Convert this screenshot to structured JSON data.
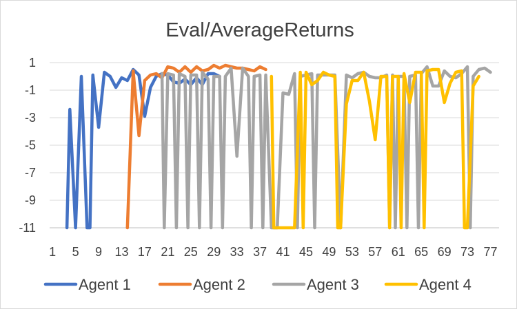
{
  "chart_data": {
    "type": "line",
    "title": "Eval/AverageReturns",
    "xlabel": "",
    "ylabel": "",
    "ylim": [
      -11,
      1
    ],
    "yticks": [
      1,
      -1,
      -3,
      -5,
      -7,
      -9,
      -11
    ],
    "xlim": [
      1,
      78
    ],
    "xticks": [
      1,
      5,
      9,
      13,
      17,
      21,
      25,
      29,
      33,
      37,
      41,
      45,
      49,
      53,
      57,
      61,
      65,
      69,
      73,
      77
    ],
    "grid": true,
    "legend": "bottom",
    "series": [
      {
        "name": "Agent 1",
        "color": "#4472c4",
        "points": [
          [
            3.5,
            -11
          ],
          [
            4,
            -2.4
          ],
          [
            5,
            -11
          ],
          [
            6,
            0
          ],
          [
            7,
            -11
          ],
          [
            7.5,
            -11
          ],
          [
            8,
            0.1
          ],
          [
            9,
            -3.7
          ],
          [
            10,
            0.3
          ],
          [
            11,
            0
          ],
          [
            12,
            -0.8
          ],
          [
            13,
            -0.1
          ],
          [
            14,
            -0.3
          ],
          [
            15,
            0.5
          ],
          [
            16,
            0.1
          ],
          [
            17,
            -2.9
          ],
          [
            18,
            -0.8
          ],
          [
            19,
            0
          ],
          [
            20,
            0.2
          ],
          [
            21,
            0.1
          ],
          [
            22,
            -0.4
          ],
          [
            23,
            -0.5
          ],
          [
            24,
            -0.2
          ],
          [
            25,
            -0.6
          ],
          [
            26,
            -0.1
          ],
          [
            27,
            -0.6
          ],
          [
            28,
            0.2
          ],
          [
            29,
            0.2
          ],
          [
            30,
            0
          ]
        ]
      },
      {
        "name": "Agent 2",
        "color": "#ed7d31",
        "points": [
          [
            14,
            -11
          ],
          [
            15,
            0.4
          ],
          [
            16,
            -4.3
          ],
          [
            17,
            -0.3
          ],
          [
            18,
            0.1
          ],
          [
            19,
            0.2
          ],
          [
            20,
            -0.1
          ],
          [
            21,
            0.7
          ],
          [
            22,
            0.6
          ],
          [
            23,
            0.3
          ],
          [
            24,
            0.7
          ],
          [
            25,
            0.3
          ],
          [
            26,
            0.7
          ],
          [
            27,
            0.4
          ],
          [
            28,
            0.5
          ],
          [
            29,
            0.8
          ],
          [
            30,
            0.6
          ],
          [
            31,
            0.8
          ],
          [
            32,
            0.7
          ],
          [
            33,
            0.6
          ],
          [
            34,
            0.6
          ],
          [
            35,
            0.5
          ],
          [
            36,
            0.4
          ],
          [
            37,
            0.7
          ],
          [
            38,
            0.5
          ]
        ]
      },
      {
        "name": "Agent 3",
        "color": "#a5a5a5",
        "points": [
          [
            20,
            0.2
          ],
          [
            20.4,
            -11
          ],
          [
            21,
            0.2
          ],
          [
            22,
            0.1
          ],
          [
            22.5,
            -11
          ],
          [
            23,
            0.2
          ],
          [
            24,
            0
          ],
          [
            24.5,
            -11
          ],
          [
            25,
            0.1
          ],
          [
            26,
            0.1
          ],
          [
            26.5,
            -11
          ],
          [
            27,
            0.3
          ],
          [
            28,
            -0.2
          ],
          [
            28.5,
            -11
          ],
          [
            29,
            0
          ],
          [
            30,
            0
          ],
          [
            30.5,
            -11
          ],
          [
            31,
            0
          ],
          [
            32,
            0.6
          ],
          [
            33,
            -5.8
          ],
          [
            34,
            0.6
          ],
          [
            35,
            0
          ],
          [
            35.5,
            -11
          ],
          [
            36,
            0
          ],
          [
            37,
            0.1
          ],
          [
            37.5,
            -11
          ],
          [
            38,
            0.1
          ],
          [
            39,
            -11
          ],
          [
            40,
            -11
          ],
          [
            41,
            -1.2
          ],
          [
            42,
            -1.3
          ],
          [
            43,
            0.2
          ],
          [
            43.5,
            -11
          ],
          [
            44,
            0
          ],
          [
            45,
            0.1
          ],
          [
            46,
            0.2
          ],
          [
            46.5,
            -11
          ],
          [
            47,
            0.1
          ],
          [
            48,
            0.1
          ],
          [
            49,
            0.1
          ],
          [
            50,
            0.1
          ],
          [
            51,
            -11
          ],
          [
            52,
            0.1
          ],
          [
            53,
            -0.1
          ],
          [
            54,
            0.2
          ],
          [
            55,
            0.3
          ],
          [
            56,
            0
          ],
          [
            57,
            -0.1
          ],
          [
            58,
            -0.1
          ],
          [
            59,
            0.1
          ],
          [
            59.5,
            -11
          ],
          [
            60,
            0.1
          ],
          [
            60.5,
            -11
          ],
          [
            61,
            0
          ],
          [
            62,
            0
          ],
          [
            62.5,
            -11
          ],
          [
            63,
            0
          ],
          [
            64,
            0.1
          ],
          [
            64.5,
            -11
          ],
          [
            65,
            0.2
          ],
          [
            66,
            0.7
          ],
          [
            67,
            -0.7
          ],
          [
            68,
            -0.7
          ],
          [
            69,
            0.4
          ],
          [
            70,
            0
          ],
          [
            71,
            -0.1
          ],
          [
            72,
            0.2
          ],
          [
            73,
            0.7
          ],
          [
            73.5,
            -11
          ],
          [
            74,
            0
          ],
          [
            75,
            0.5
          ],
          [
            76,
            0.6
          ],
          [
            77,
            0.3
          ]
        ]
      },
      {
        "name": "Agent 4",
        "color": "#ffc000",
        "points": [
          [
            39,
            0
          ],
          [
            39.4,
            -11
          ],
          [
            40,
            -11
          ],
          [
            43,
            -11
          ],
          [
            44,
            0.3
          ],
          [
            44.5,
            -11
          ],
          [
            45,
            0.3
          ],
          [
            46,
            -0.6
          ],
          [
            47,
            -0.3
          ],
          [
            48,
            0.3
          ],
          [
            49,
            0.1
          ],
          [
            50,
            0
          ],
          [
            50.5,
            -11
          ],
          [
            51,
            -11
          ],
          [
            52,
            -2
          ],
          [
            53,
            -0.3
          ],
          [
            54,
            -0.3
          ],
          [
            55,
            0.3
          ],
          [
            56,
            -1.8
          ],
          [
            57,
            -4.6
          ],
          [
            58,
            0
          ],
          [
            59,
            0
          ],
          [
            59.5,
            -11
          ],
          [
            60,
            0
          ],
          [
            61,
            0
          ],
          [
            61.5,
            -11
          ],
          [
            62,
            0.2
          ],
          [
            63,
            -1.9
          ],
          [
            64,
            0.3
          ],
          [
            65,
            0.3
          ],
          [
            65.5,
            -11
          ],
          [
            66,
            0.4
          ],
          [
            67,
            0.5
          ],
          [
            68,
            0.5
          ],
          [
            69,
            -1.9
          ],
          [
            70,
            -0.5
          ],
          [
            71,
            0.3
          ],
          [
            72,
            0.4
          ],
          [
            72.5,
            -11
          ],
          [
            73,
            -11
          ],
          [
            74,
            -0.7
          ],
          [
            75,
            0
          ]
        ]
      }
    ]
  }
}
